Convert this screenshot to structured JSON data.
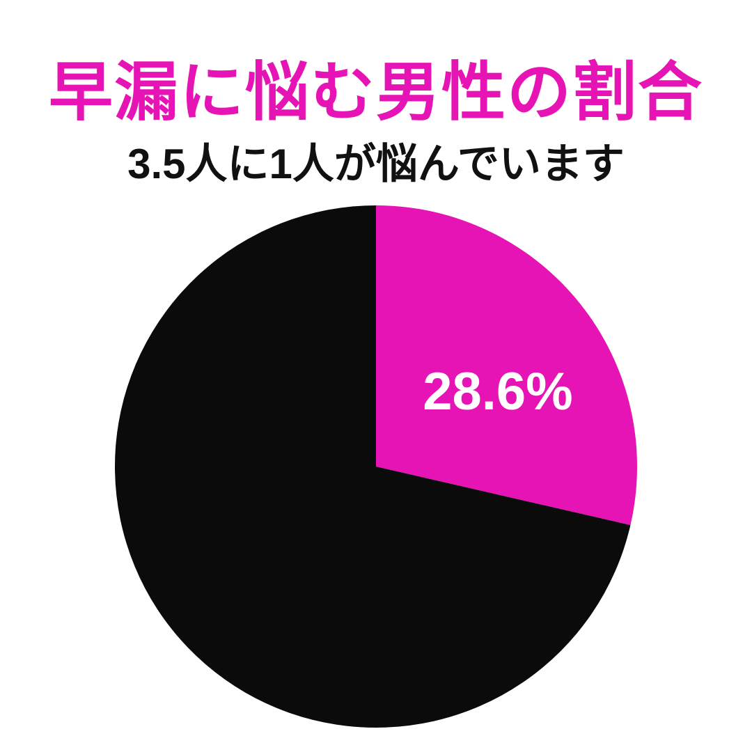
{
  "chart_data": {
    "type": "pie",
    "title": "早漏に悩む男性の割合",
    "subtitle": "3.5人に1人が悩んでいます",
    "slices": [
      {
        "value": 28.6,
        "label": "28.6%",
        "color": "#e614b4"
      },
      {
        "value": 71.4,
        "label": "",
        "color": "#0b0b0b"
      }
    ],
    "start_angle": "12 o'clock",
    "direction": "clockwise",
    "legend": "none"
  }
}
